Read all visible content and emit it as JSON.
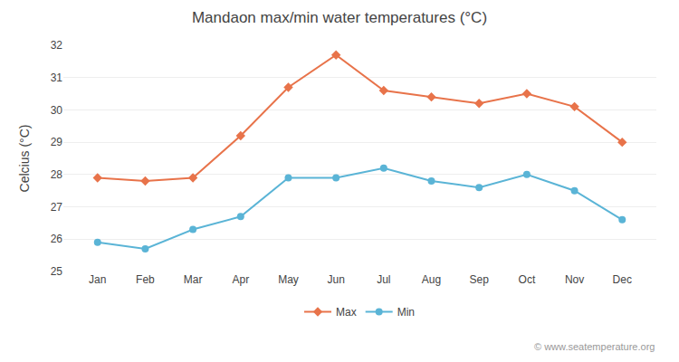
{
  "chart_data": {
    "type": "line",
    "title": "Mandaon max/min water temperatures (°C)",
    "y_label": "Celcius (°C)",
    "categories": [
      "Jan",
      "Feb",
      "Mar",
      "Apr",
      "May",
      "Jun",
      "Jul",
      "Aug",
      "Sep",
      "Oct",
      "Nov",
      "Dec"
    ],
    "series": [
      {
        "name": "Max",
        "color": "#e8734a",
        "marker": "diamond",
        "values": [
          27.9,
          27.8,
          27.9,
          29.2,
          30.7,
          31.7,
          30.6,
          30.4,
          30.2,
          30.5,
          30.1,
          29.0
        ]
      },
      {
        "name": "Min",
        "color": "#5ab4d6",
        "marker": "circle",
        "values": [
          25.9,
          25.7,
          26.3,
          26.7,
          27.9,
          27.9,
          28.2,
          27.8,
          27.6,
          28.0,
          27.5,
          26.6
        ]
      }
    ],
    "ylim": [
      25,
      32
    ],
    "yticks": [
      25,
      26,
      27,
      28,
      29,
      30,
      31,
      32
    ],
    "grid": true,
    "legend": "bottom",
    "annotations": [
      "© www.seatemperature.org"
    ]
  }
}
